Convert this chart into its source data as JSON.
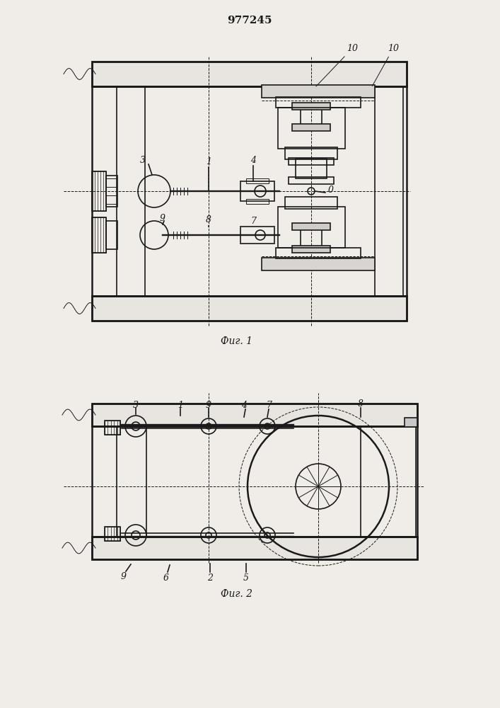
{
  "title": "977245",
  "fig1_caption": "Фиг. 1",
  "fig2_caption": "Фиг. 2",
  "bg_color": "#f0ede8",
  "line_color": "#1a1a1a",
  "line_width": 1.2,
  "thin_line": 0.7,
  "thick_line": 1.8
}
